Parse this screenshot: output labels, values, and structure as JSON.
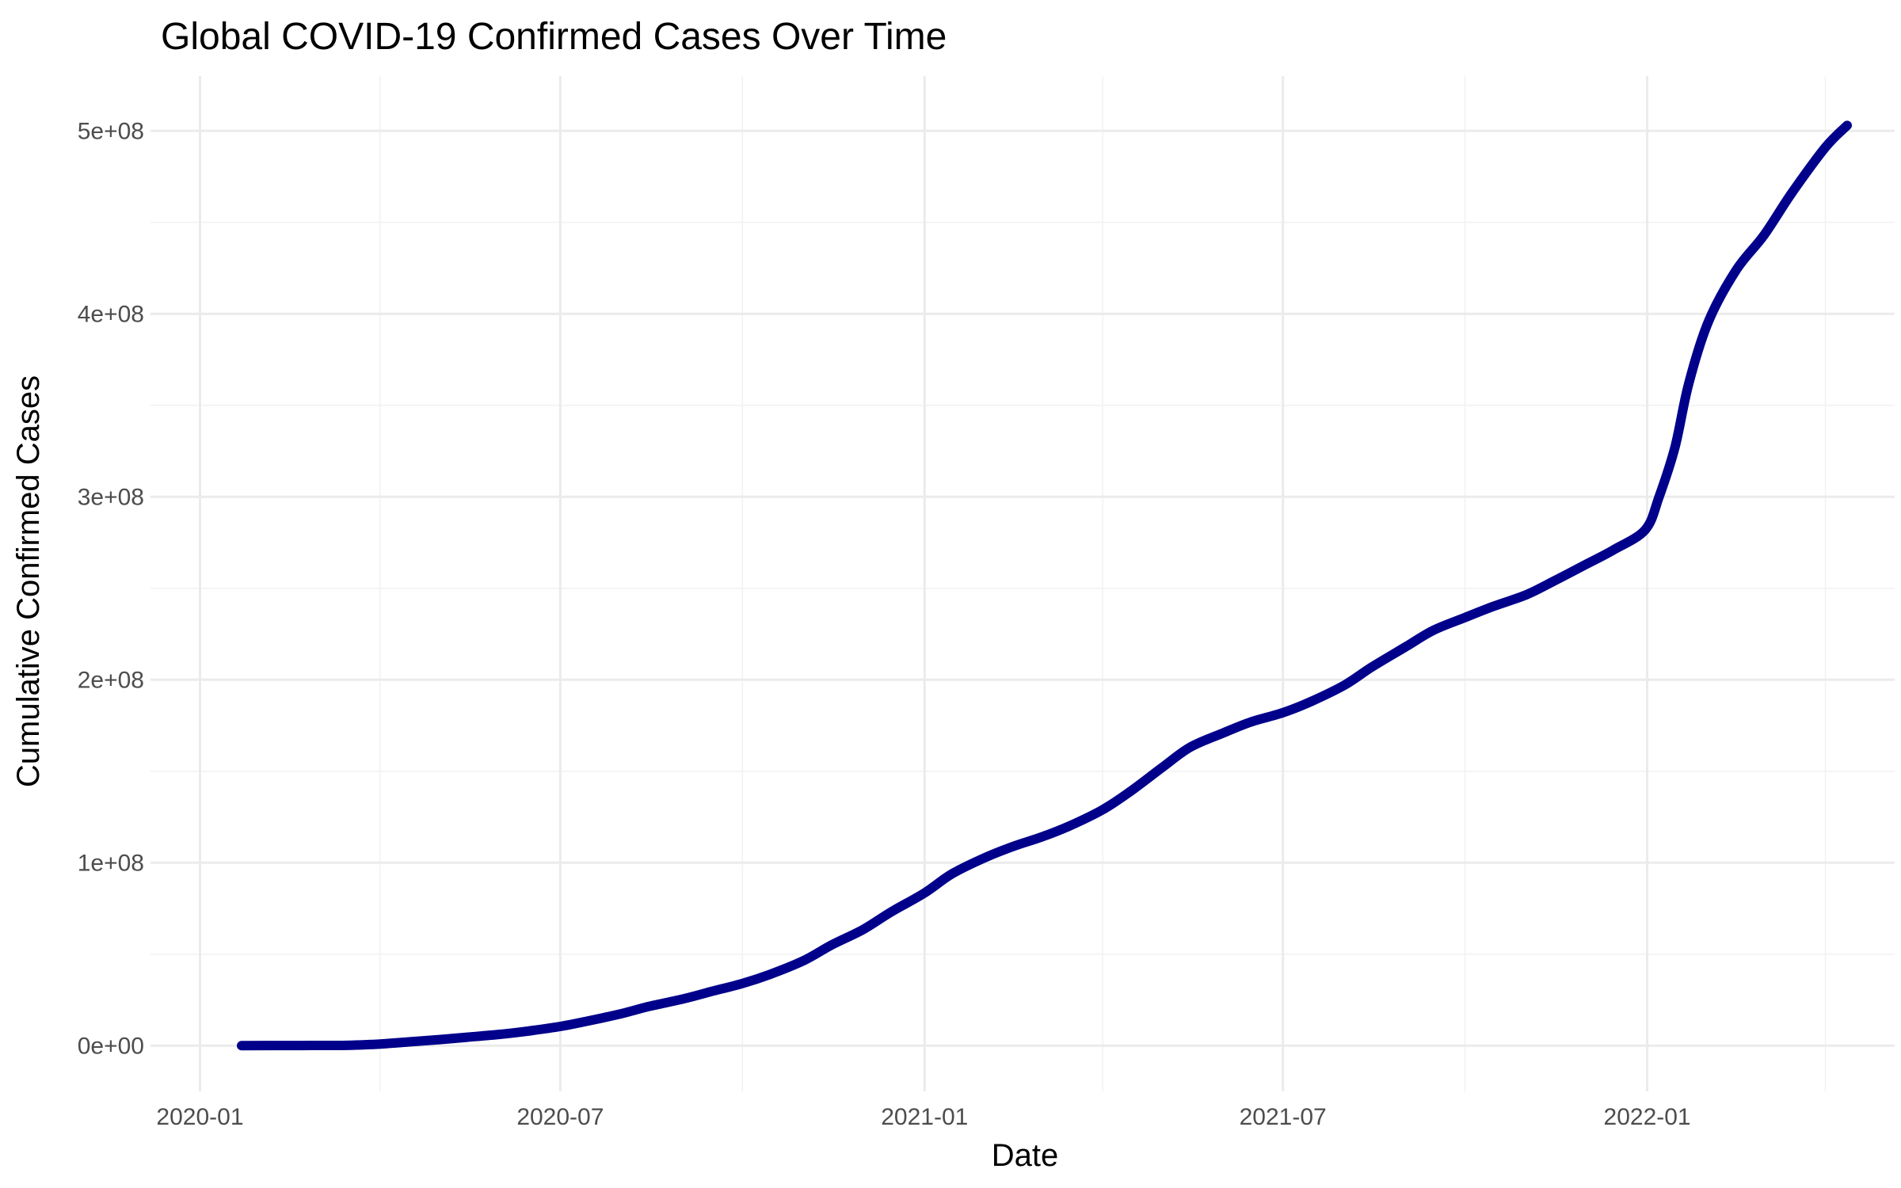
{
  "chart_data": {
    "type": "line",
    "title": "Global COVID-19 Confirmed Cases Over Time",
    "xlabel": "Date",
    "ylabel": "Cumulative Confirmed Cases",
    "x_ticks": [
      {
        "date": "2020-01-01",
        "label": "2020-01"
      },
      {
        "date": "2020-07-01",
        "label": "2020-07"
      },
      {
        "date": "2021-01-01",
        "label": "2021-01"
      },
      {
        "date": "2021-07-01",
        "label": "2021-07"
      },
      {
        "date": "2022-01-01",
        "label": "2022-01"
      }
    ],
    "x_minor_ticks": [
      "2020-04-01",
      "2020-10-01",
      "2021-04-01",
      "2021-10-01",
      "2022-04-01"
    ],
    "y_ticks": [
      {
        "value": 0,
        "label": "0e+00"
      },
      {
        "value": 100000000,
        "label": "1e+08"
      },
      {
        "value": 200000000,
        "label": "2e+08"
      },
      {
        "value": 300000000,
        "label": "3e+08"
      },
      {
        "value": 400000000,
        "label": "4e+08"
      },
      {
        "value": 500000000,
        "label": "5e+08"
      }
    ],
    "y_minor_ticks": [
      50000000,
      150000000,
      250000000,
      350000000,
      450000000
    ],
    "xlim": [
      "2019-12-07",
      "2022-05-06"
    ],
    "ylim": [
      -25000000,
      530000000
    ],
    "grid": true,
    "legend": "none",
    "line_color": "#00008b",
    "series": [
      {
        "x": [
          "2020-01-22",
          "2020-02-15",
          "2020-03-01",
          "2020-03-15",
          "2020-04-01",
          "2020-04-15",
          "2020-05-01",
          "2020-05-15",
          "2020-06-01",
          "2020-06-15",
          "2020-07-01",
          "2020-07-15",
          "2020-08-01",
          "2020-08-15",
          "2020-09-01",
          "2020-09-15",
          "2020-10-01",
          "2020-10-15",
          "2020-11-01",
          "2020-11-15",
          "2020-12-01",
          "2020-12-15",
          "2021-01-01",
          "2021-01-15",
          "2021-02-01",
          "2021-02-15",
          "2021-03-01",
          "2021-03-15",
          "2021-04-01",
          "2021-04-15",
          "2021-05-01",
          "2021-05-15",
          "2021-06-01",
          "2021-06-15",
          "2021-07-01",
          "2021-07-15",
          "2021-08-01",
          "2021-08-15",
          "2021-09-01",
          "2021-09-15",
          "2021-10-01",
          "2021-10-15",
          "2021-11-01",
          "2021-11-15",
          "2021-12-01",
          "2021-12-15",
          "2021-12-31",
          "2022-01-07",
          "2022-01-15",
          "2022-01-22",
          "2022-02-01",
          "2022-02-15",
          "2022-03-01",
          "2022-03-15",
          "2022-04-01",
          "2022-04-12"
        ],
        "y": [
          557,
          80000,
          90000,
          170000,
          900000,
          2000000,
          3300000,
          4600000,
          6200000,
          8000000,
          10500000,
          13500000,
          17500000,
          21500000,
          25500000,
          29500000,
          34000000,
          39000000,
          46500000,
          55000000,
          63500000,
          73000000,
          83500000,
          94000000,
          103000000,
          109000000,
          114000000,
          120000000,
          129000000,
          139000000,
          152000000,
          163000000,
          171000000,
          177000000,
          182000000,
          188000000,
          197000000,
          207000000,
          218000000,
          227000000,
          234000000,
          240000000,
          246500000,
          254000000,
          263000000,
          271000000,
          282000000,
          300000000,
          327000000,
          362000000,
          396000000,
          424000000,
          443000000,
          466000000,
          491000000,
          503000000
        ]
      }
    ]
  }
}
